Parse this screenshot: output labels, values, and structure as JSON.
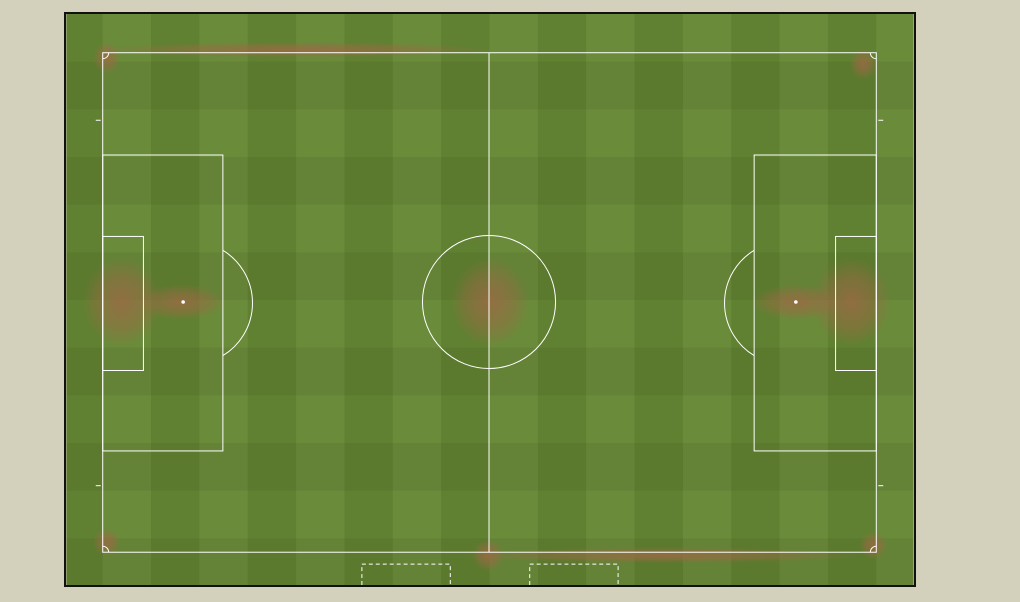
{
  "app": {
    "view": "pitch-editor",
    "background_color": "#d3d1bc",
    "frame_color": "#111111"
  },
  "pitch": {
    "grass_light": "#6b8c3c",
    "grass_dark": "#5a7a2c",
    "line_color": "#ffffff",
    "wear_color": "#9a6a44",
    "stripes": 16,
    "markings": [
      "touchlines",
      "goal-lines",
      "halfway-line",
      "centre-circle",
      "penalty-areas",
      "goal-areas",
      "penalty-arcs",
      "penalty-spots",
      "corner-arcs"
    ],
    "dugouts": 2
  }
}
